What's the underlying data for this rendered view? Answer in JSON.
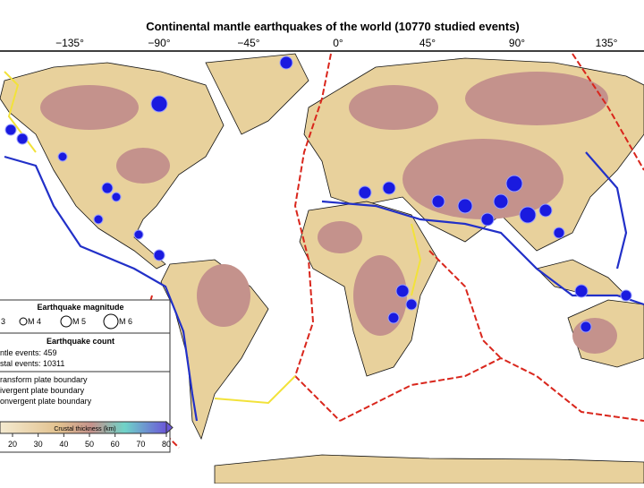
{
  "title": "Continental mantle earthquakes of the world (10770 studied events)",
  "longitude_labels": [
    "−135°",
    "−90°",
    "−45°",
    "0°",
    "45°",
    "90°",
    "135°"
  ],
  "legend": {
    "magnitude_title": "Earthquake magnitude",
    "magnitudes": [
      "3",
      "M 4",
      "M 5",
      "M 6"
    ],
    "count_title": "Earthquake count",
    "counts": [
      "ntle events: 459",
      "stal events: 10311"
    ],
    "boundaries": [
      "ransform plate boundary",
      "ivergent plate boundary",
      "onvergent plate boundary"
    ]
  },
  "colorbar": {
    "label": "Crustal thickness (km)",
    "ticks": [
      20,
      30,
      40,
      50,
      60,
      70,
      80
    ]
  }
}
